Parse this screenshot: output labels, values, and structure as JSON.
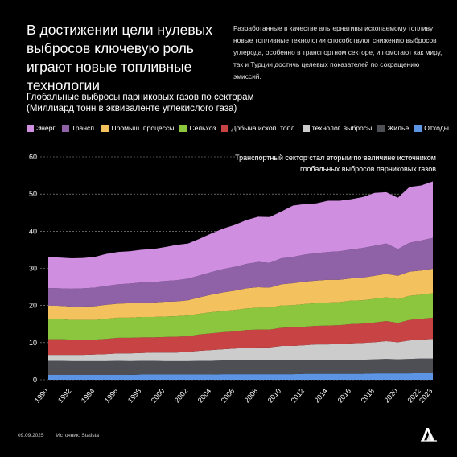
{
  "headline": "В достижении цели нулевых выбросов ключевую роль играют новые топливные технологии",
  "intro": "Разработанные в качестве альтернативы ископаемому топливу новые топливные технологии способствуют снижению выбросов углерода, особенно в транспортном секторе, и помогают как миру, так и Турции достичь целевых показателей по сокращению эмиссий.",
  "footer": {
    "date": "09.09.2025",
    "source": "Источник: Statista"
  },
  "colors": {
    "background": "#000000",
    "grid": "#9a9a9a"
  },
  "chart_data": {
    "type": "area",
    "stacked": true,
    "title": "Глобальные выбросы парниковых газов по секторам",
    "subtitle": "(Миллиард тонн в эквиваленте углекислого газа)",
    "annotation": "Транспортный сектор стал вторым по величине источником глобальных выбросов парниковых газов",
    "legend_position": "top",
    "grid": true,
    "ylim": [
      0,
      60
    ],
    "y_ticks": [
      0,
      10,
      20,
      30,
      40,
      50,
      60
    ],
    "x_ticks": [
      1990,
      1992,
      1994,
      1996,
      1998,
      2000,
      2002,
      2004,
      2006,
      2008,
      2010,
      2012,
      2014,
      2016,
      2018,
      2020,
      2022,
      2023
    ],
    "x": [
      1990,
      1991,
      1992,
      1993,
      1994,
      1995,
      1996,
      1997,
      1998,
      1999,
      2000,
      2001,
      2002,
      2003,
      2004,
      2005,
      2006,
      2007,
      2008,
      2009,
      2010,
      2011,
      2012,
      2013,
      2014,
      2015,
      2016,
      2017,
      2018,
      2019,
      2020,
      2021,
      2022,
      2023
    ],
    "legend_order": [
      "Энерг.",
      "Трансп.",
      "Промыш. процессы",
      "Сельхоз",
      "Добыча ископ. топл.",
      "технолог. выбросы",
      "Жилье",
      "Отходы"
    ],
    "series": [
      {
        "name": "Отходы",
        "color": "#5b95e4",
        "values": [
          1.3,
          1.3,
          1.3,
          1.3,
          1.3,
          1.3,
          1.3,
          1.3,
          1.4,
          1.4,
          1.4,
          1.4,
          1.4,
          1.4,
          1.4,
          1.5,
          1.5,
          1.5,
          1.5,
          1.5,
          1.5,
          1.5,
          1.6,
          1.6,
          1.6,
          1.6,
          1.6,
          1.6,
          1.7,
          1.7,
          1.7,
          1.7,
          1.8,
          1.8
        ]
      },
      {
        "name": "Жилье",
        "color": "#4d4f55",
        "values": [
          3.8,
          3.8,
          3.7,
          3.7,
          3.7,
          3.7,
          3.8,
          3.7,
          3.7,
          3.7,
          3.6,
          3.6,
          3.6,
          3.7,
          3.7,
          3.7,
          3.7,
          3.7,
          3.7,
          3.7,
          3.8,
          3.7,
          3.7,
          3.8,
          3.7,
          3.7,
          3.8,
          3.8,
          3.8,
          3.9,
          3.8,
          3.9,
          3.9,
          3.9
        ]
      },
      {
        "name": "технолог. выбросы",
        "color": "#cccccc",
        "values": [
          1.6,
          1.6,
          1.7,
          1.7,
          1.8,
          1.9,
          2.0,
          2.1,
          2.1,
          2.2,
          2.3,
          2.3,
          2.5,
          2.7,
          2.9,
          3.0,
          3.2,
          3.4,
          3.5,
          3.5,
          3.8,
          3.9,
          4.0,
          4.1,
          4.2,
          4.3,
          4.4,
          4.5,
          4.6,
          4.8,
          4.6,
          5.0,
          5.1,
          5.3
        ]
      },
      {
        "name": "Добыча ископ. топл.",
        "color": "#c84444",
        "values": [
          4.2,
          4.2,
          4.1,
          4.1,
          4.0,
          4.1,
          4.2,
          4.2,
          4.2,
          4.1,
          4.2,
          4.3,
          4.2,
          4.4,
          4.5,
          4.6,
          4.6,
          4.8,
          4.8,
          4.8,
          4.9,
          5.0,
          5.0,
          5.0,
          5.1,
          5.1,
          5.2,
          5.2,
          5.3,
          5.4,
          5.2,
          5.5,
          5.6,
          5.7
        ]
      },
      {
        "name": "Сельхоз",
        "color": "#8cc63f",
        "values": [
          5.4,
          5.4,
          5.3,
          5.3,
          5.3,
          5.4,
          5.4,
          5.4,
          5.5,
          5.5,
          5.5,
          5.5,
          5.6,
          5.6,
          5.7,
          5.7,
          5.8,
          5.8,
          5.9,
          5.9,
          6.0,
          6.0,
          6.1,
          6.1,
          6.2,
          6.2,
          6.3,
          6.3,
          6.4,
          6.4,
          6.4,
          6.5,
          6.5,
          6.6
        ]
      },
      {
        "name": "Промыш. процессы",
        "color": "#f3c25e",
        "values": [
          3.7,
          3.6,
          3.6,
          3.6,
          3.7,
          3.8,
          3.8,
          3.9,
          3.9,
          3.9,
          4.0,
          4.0,
          4.1,
          4.4,
          4.7,
          5.0,
          5.2,
          5.4,
          5.5,
          5.4,
          5.7,
          5.9,
          6.0,
          6.1,
          6.1,
          6.0,
          6.0,
          6.1,
          6.2,
          6.3,
          6.3,
          6.5,
          6.5,
          6.6
        ]
      },
      {
        "name": "Трансп.",
        "color": "#8f62a8",
        "values": [
          4.7,
          4.7,
          4.8,
          4.9,
          5.0,
          5.1,
          5.2,
          5.3,
          5.4,
          5.5,
          5.6,
          5.7,
          5.8,
          5.9,
          6.1,
          6.3,
          6.4,
          6.6,
          6.8,
          6.7,
          7.0,
          7.1,
          7.3,
          7.4,
          7.5,
          7.7,
          7.8,
          8.0,
          8.1,
          8.2,
          7.2,
          7.8,
          8.1,
          8.3
        ]
      },
      {
        "name": "Энерг.",
        "color": "#cf8ee0",
        "values": [
          8.3,
          8.3,
          8.2,
          8.2,
          8.3,
          8.6,
          8.7,
          8.7,
          8.8,
          8.9,
          9.1,
          9.5,
          9.5,
          9.9,
          10.4,
          10.9,
          11.3,
          11.8,
          12.2,
          12.3,
          12.6,
          13.8,
          13.6,
          13.4,
          13.8,
          13.6,
          13.5,
          13.7,
          14.2,
          13.8,
          13.8,
          15.0,
          14.8,
          15.2
        ]
      }
    ]
  }
}
